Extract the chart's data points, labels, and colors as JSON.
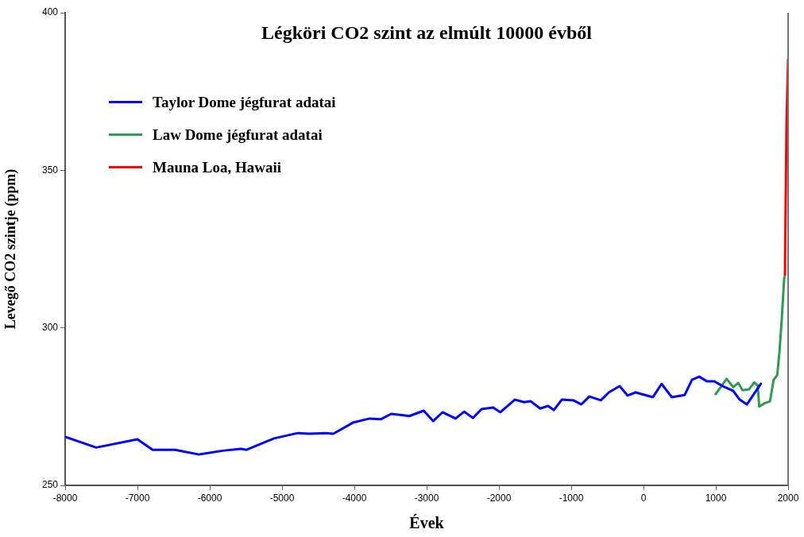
{
  "chart_data": {
    "type": "line",
    "title": "Légköri CO2 szint az elmúlt 10000 évből",
    "xlabel": "Évek",
    "ylabel": "Levegő CO2 szintje (ppm)",
    "xlim": [
      -8000,
      2000
    ],
    "xticks": [
      -8000,
      -7000,
      -6000,
      -5000,
      -4000,
      -3000,
      -2000,
      -1000,
      0,
      1000,
      2000
    ],
    "ylim": [
      250,
      400
    ],
    "yticks": [
      250,
      300,
      350,
      400
    ],
    "grid": false,
    "legend": "top left",
    "marker": "none",
    "line_style": "solid",
    "series": [
      {
        "name": "Taylor Dome jégfurat adatai",
        "color": "#0000ff",
        "x": [
          -8000,
          -7570,
          -7000,
          -6790,
          -6480,
          -6150,
          -5820,
          -5570,
          -5490,
          -5110,
          -4780,
          -4620,
          -4400,
          -4290,
          -4010,
          -3790,
          -3630,
          -3490,
          -3240,
          -3040,
          -2910,
          -2780,
          -2600,
          -2480,
          -2360,
          -2240,
          -2080,
          -1980,
          -1780,
          -1650,
          -1560,
          -1430,
          -1320,
          -1240,
          -1130,
          -970,
          -860,
          -750,
          -590,
          -480,
          -330,
          -220,
          -110,
          130,
          250,
          390,
          570,
          670,
          770,
          880,
          980,
          1120,
          1240,
          1330,
          1430,
          1630
        ],
        "values": [
          265.4,
          262,
          264.6,
          261.3,
          261.3,
          259.8,
          261,
          261.6,
          261.3,
          264.9,
          266.6,
          266.4,
          266.6,
          266.4,
          270,
          271.2,
          271,
          272.7,
          272,
          273.7,
          270.4,
          273.2,
          271.2,
          273.4,
          271.4,
          274.2,
          274.7,
          273.2,
          277.2,
          276.4,
          276.7,
          274.4,
          275.2,
          273.9,
          277.2,
          277,
          275.7,
          278.2,
          277,
          279.5,
          281.5,
          278.5,
          279.5,
          278,
          282.2,
          278,
          278.7,
          283.5,
          284.5,
          283,
          283,
          281.2,
          280,
          277.2,
          275.7,
          282.5
        ]
      },
      {
        "name": "Law Dome jégfurat adatai",
        "color": "#2e9b4e",
        "x": [
          990,
          1150,
          1240,
          1310,
          1370,
          1460,
          1530,
          1580,
          1600,
          1670,
          1750,
          1800,
          1850,
          1880,
          1910,
          1945,
          1956
        ],
        "values": [
          278.7,
          283.8,
          281.2,
          282.5,
          280.2,
          280.5,
          282.7,
          281.7,
          275,
          276,
          276.7,
          283.5,
          285,
          292.3,
          301.9,
          315.5,
          316.5
        ]
      },
      {
        "name": "Mauna Loa, Hawaii",
        "color": "#ff0000",
        "x": [
          1956,
          1967,
          1978,
          2000
        ],
        "values": [
          316.5,
          341.7,
          364.9,
          385.5
        ]
      }
    ]
  }
}
